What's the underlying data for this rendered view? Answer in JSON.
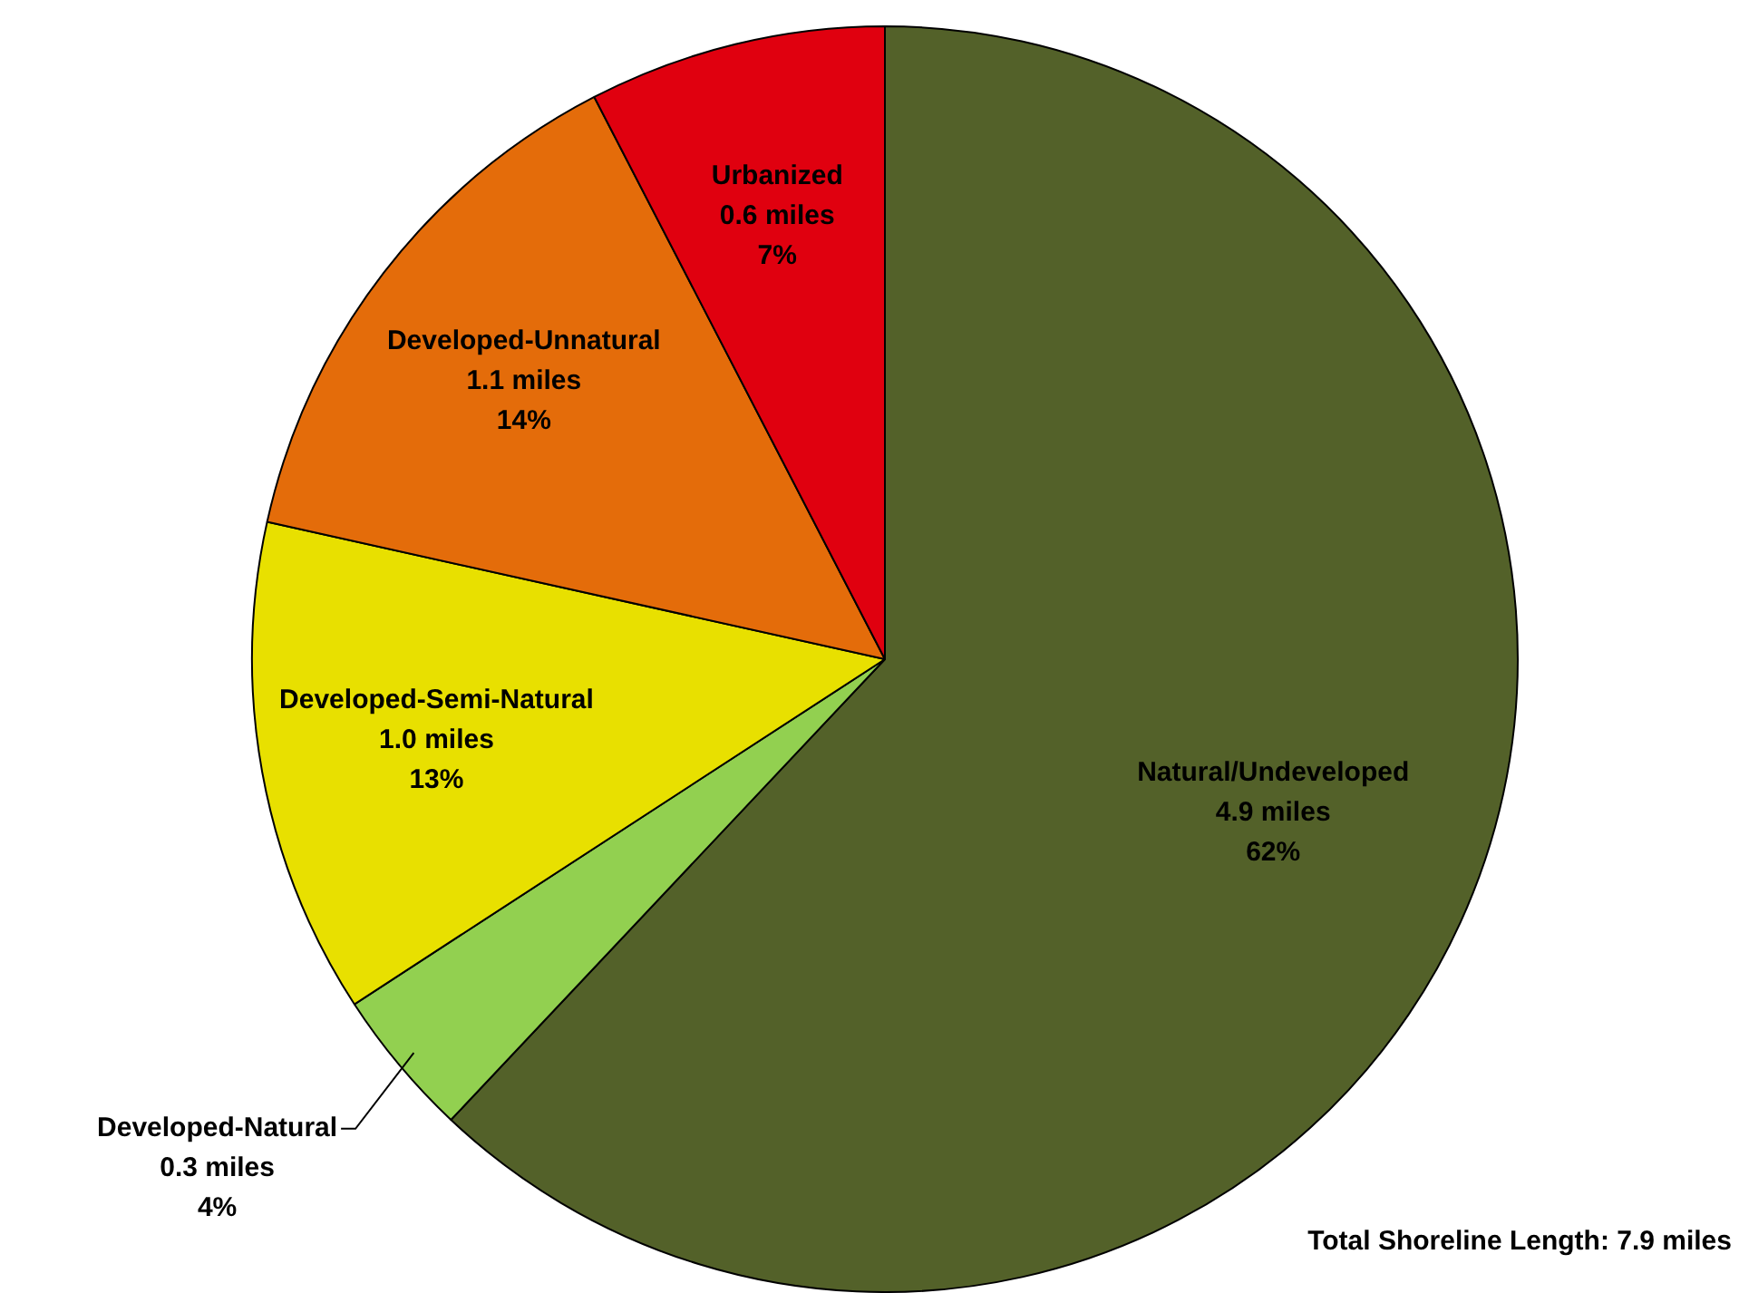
{
  "chart_data": {
    "type": "pie",
    "categories": [
      "Natural/Undeveloped",
      "Developed-Natural",
      "Developed-Semi-Natural",
      "Developed-Unnatural",
      "Urbanized"
    ],
    "values": [
      4.9,
      0.3,
      1.0,
      1.1,
      0.6
    ],
    "value_labels": [
      "4.9 miles\n62%",
      "0.3 miles\n4%",
      "1.0 miles\n13%",
      "1.1 miles\n14%",
      "0.6 miles\n7%"
    ],
    "colors": [
      "#536129",
      "#92d050",
      "#e8e000",
      "#e46c0a",
      "#e0000f"
    ],
    "annotations": [
      "Total Shoreline Length: 7.9 miles"
    ],
    "legend": false
  }
}
